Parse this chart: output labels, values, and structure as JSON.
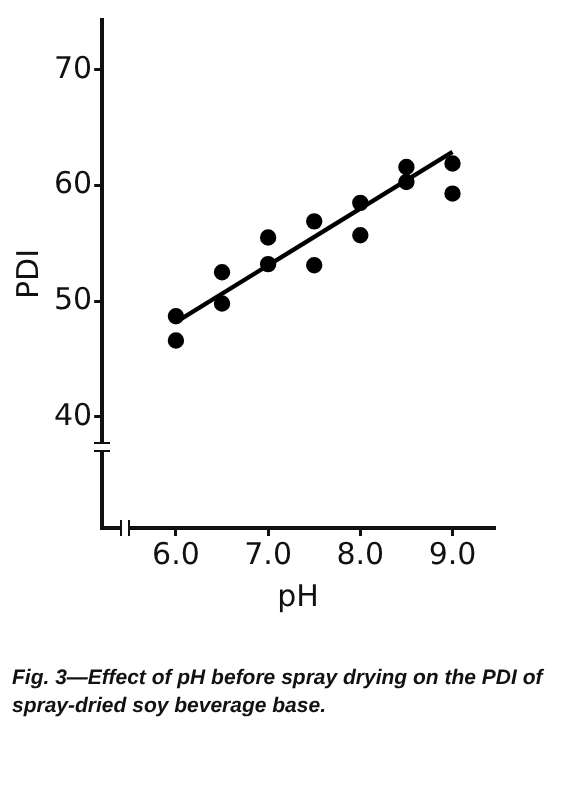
{
  "chart_data": {
    "type": "scatter",
    "xlabel": "pH",
    "ylabel": "PDI",
    "xlim": [
      5.2,
      9.45
    ],
    "ylim": [
      30.4,
      74.3
    ],
    "xticks": [
      {
        "value": 6,
        "label": "6.0"
      },
      {
        "value": 7,
        "label": "7.0"
      },
      {
        "value": 8,
        "label": "8.0"
      },
      {
        "value": 9,
        "label": "9.0"
      }
    ],
    "yticks": [
      40,
      50,
      60,
      70
    ],
    "grid": false,
    "legend": false,
    "marker": "circle",
    "series": [
      {
        "type": "scatter",
        "color": "#000000",
        "x": [
          6.0,
          6.0,
          6.5,
          6.5,
          7.0,
          7.0,
          7.5,
          7.5,
          8.0,
          8.0,
          8.5,
          8.5,
          9.0,
          9.0
        ],
        "values": [
          48.7,
          46.6,
          52.5,
          49.8,
          55.5,
          53.2,
          56.9,
          53.1,
          58.5,
          55.7,
          61.6,
          60.3,
          61.9,
          59.3
        ]
      },
      {
        "type": "line",
        "color": "#000000",
        "line_style": "solid",
        "marker": "none",
        "x": [
          6.0,
          9.0
        ],
        "values": [
          48.2,
          62.9
        ]
      }
    ],
    "annotations": [
      "Fig. 3—Effect of pH before spray drying on the PDI of spray-dried soy beverage base."
    ]
  }
}
